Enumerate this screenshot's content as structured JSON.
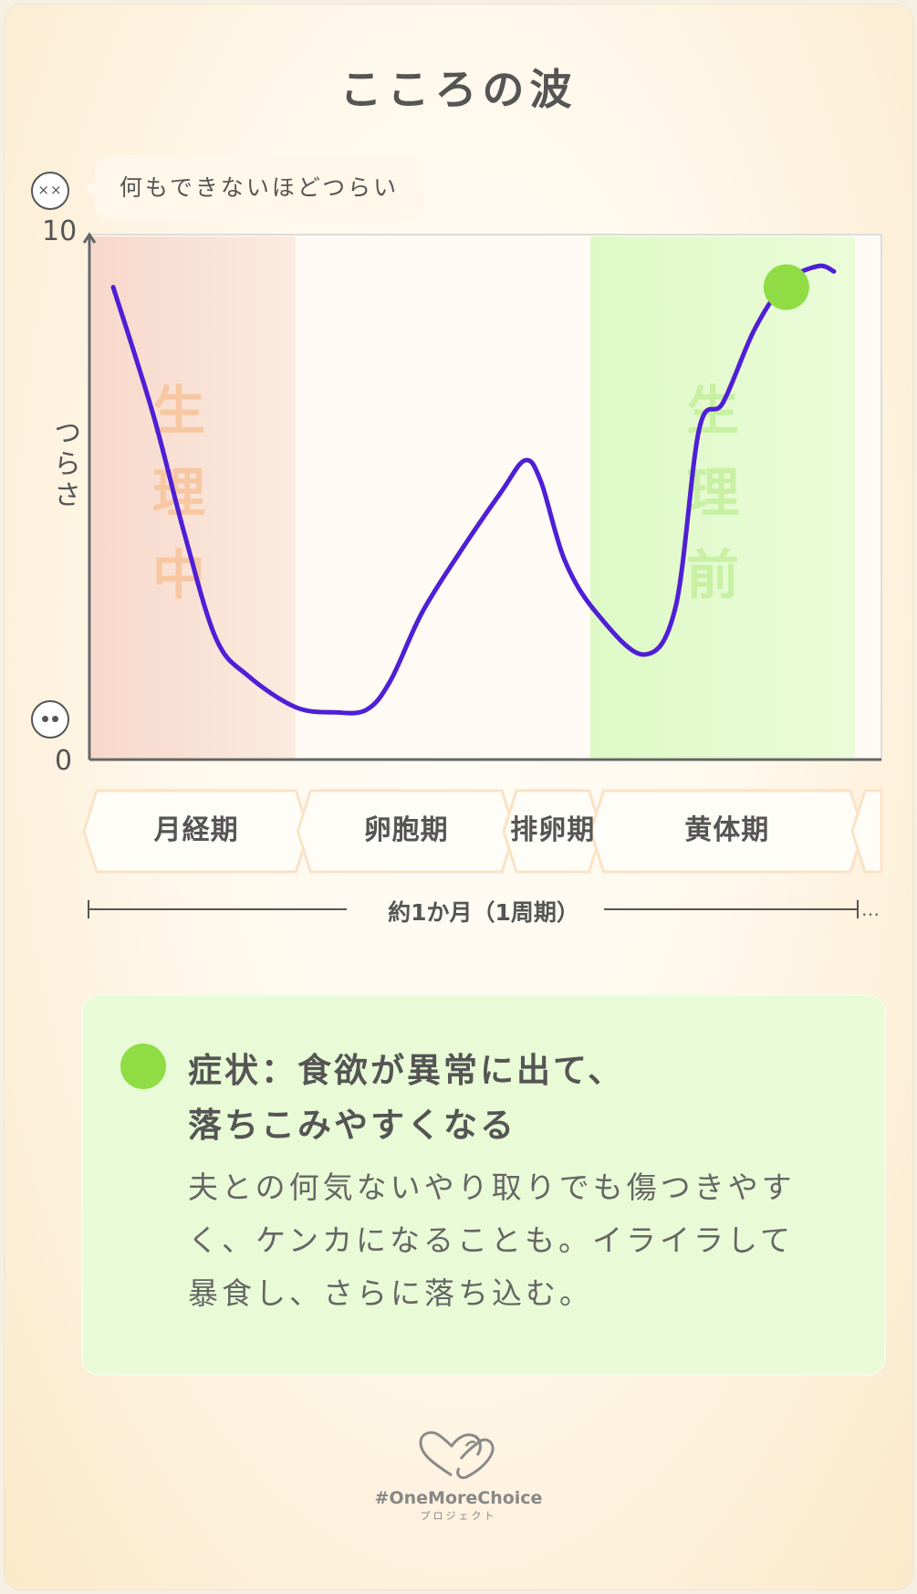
{
  "title": "こころの波",
  "bubble": "何もできないほどつらい",
  "icons": {
    "bad_face": "dizzy-face-icon",
    "good_face": "calm-face-icon",
    "logo": "heart-hands-icon"
  },
  "colors": {
    "line": "#4f1fd6",
    "marker": "#8fdc45",
    "menstrual_band": "#f9e3d6",
    "premenstrual_band": "#e4fbcf",
    "menstrual_text": "#f7c7a1",
    "premenstrual_text": "#c7f0a3",
    "symptom_panel": "#e9fbd6"
  },
  "chart_data": {
    "type": "line",
    "ylabel": "つらさ",
    "ylim": [
      0,
      10
    ],
    "yticks": [
      "10",
      "0"
    ],
    "xlabel": "約1か月（1周期）",
    "xlabel_suffix": "…",
    "x_unit": "cycle fraction",
    "series": [
      {
        "points": [
          [
            0.03,
            9.0
          ],
          [
            0.08,
            6.6
          ],
          [
            0.12,
            4.3
          ],
          [
            0.16,
            2.3
          ],
          [
            0.2,
            1.6
          ],
          [
            0.26,
            1.0
          ],
          [
            0.31,
            0.9
          ],
          [
            0.35,
            0.95
          ],
          [
            0.38,
            1.5
          ],
          [
            0.42,
            2.8
          ],
          [
            0.47,
            4.0
          ],
          [
            0.52,
            5.1
          ],
          [
            0.55,
            5.7
          ],
          [
            0.57,
            5.3
          ],
          [
            0.6,
            3.8
          ],
          [
            0.64,
            2.8
          ],
          [
            0.7,
            2.0
          ],
          [
            0.74,
            2.9
          ],
          [
            0.77,
            6.3
          ],
          [
            0.8,
            6.8
          ],
          [
            0.84,
            8.2
          ],
          [
            0.88,
            9.1
          ],
          [
            0.92,
            9.4
          ],
          [
            0.94,
            9.3
          ]
        ]
      }
    ],
    "marker": {
      "x": 0.88,
      "y": 9.0
    },
    "bands": [
      {
        "label_chars": [
          "生",
          "理",
          "中"
        ],
        "x_range": [
          0,
          0.26
        ],
        "tone": "menstrual"
      },
      {
        "label_chars": [
          "生",
          "理",
          "前"
        ],
        "x_range": [
          0.63,
          0.967
        ],
        "tone": "premenstrual"
      }
    ],
    "phases": [
      {
        "label": "月経期",
        "x_range": [
          0.0,
          0.27
        ]
      },
      {
        "label": "卵胞期",
        "x_range": [
          0.27,
          0.53
        ]
      },
      {
        "label": "排卵期",
        "x_range": [
          0.53,
          0.64
        ]
      },
      {
        "label": "黄体期",
        "x_range": [
          0.64,
          0.97
        ]
      },
      {
        "label": "",
        "x_range": [
          0.97,
          1.0
        ]
      }
    ]
  },
  "symptom": {
    "title_line1": "症状：食欲が異常に出て、",
    "title_line2": "落ちこみやすくなる",
    "body_line1": "夫との何気ないやり取りでも傷つきやす",
    "body_line2": "く、ケンカになることも。イライラして",
    "body_line3": "暴食し、さらに落ち込む。"
  },
  "logo": {
    "text": "#OneMoreChoice",
    "sub": "プロジェクト"
  }
}
